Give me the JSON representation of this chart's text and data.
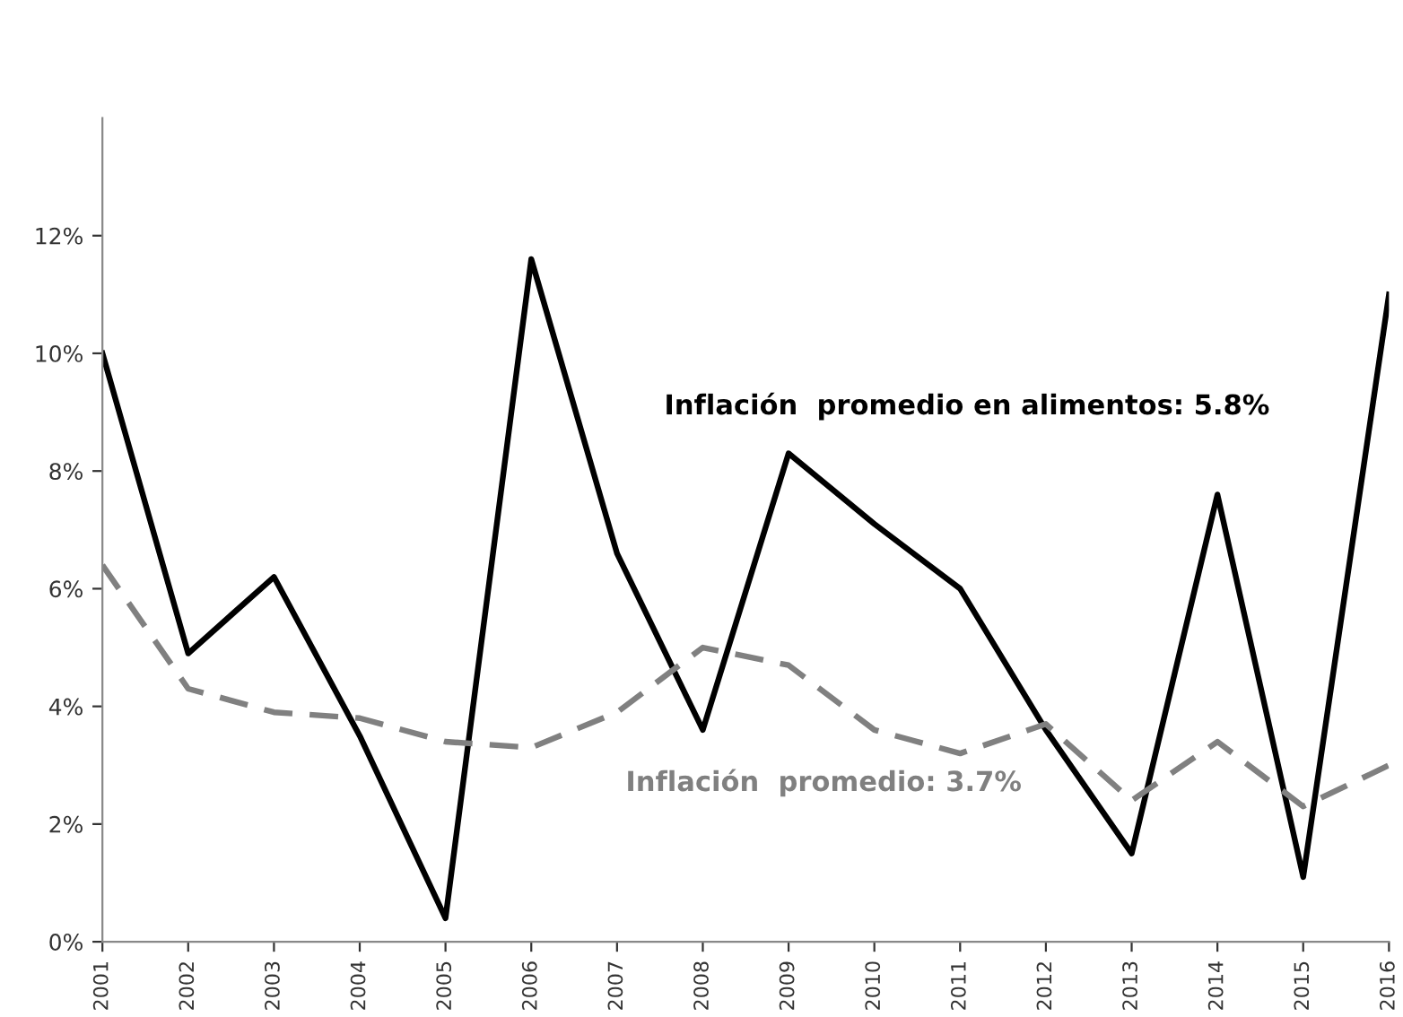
{
  "chart_data": {
    "type": "line",
    "categories": [
      "2001",
      "2002",
      "2003",
      "2004",
      "2005",
      "2006",
      "2007",
      "2008",
      "2009",
      "2010",
      "2011",
      "2012",
      "2013",
      "2014",
      "2015",
      "2016"
    ],
    "series": [
      {
        "name": "Inflación  promedio en alimentos: 5.8%",
        "color": "#000000",
        "line_style": "solid",
        "values": [
          10.0,
          4.9,
          6.2,
          3.5,
          0.4,
          11.6,
          6.6,
          3.6,
          8.3,
          7.1,
          6.0,
          3.6,
          1.5,
          7.6,
          1.1,
          11.0
        ]
      },
      {
        "name": "Inflación  promedio: 3.7%",
        "color": "#808080",
        "line_style": "dashed",
        "values": [
          6.4,
          4.3,
          3.9,
          3.8,
          3.4,
          3.3,
          3.9,
          5.0,
          4.7,
          3.6,
          3.2,
          3.7,
          2.4,
          3.4,
          2.3,
          3.0
        ]
      }
    ],
    "ylim": [
      0,
      14
    ],
    "yticks": [
      {
        "value": 0,
        "label": "0%"
      },
      {
        "value": 2,
        "label": "2%"
      },
      {
        "value": 4,
        "label": "4%"
      },
      {
        "value": 6,
        "label": "6%"
      },
      {
        "value": 8,
        "label": "8%"
      },
      {
        "value": 10,
        "label": "10%"
      },
      {
        "value": 12,
        "label": "12%"
      }
    ],
    "grid": false,
    "legend": false,
    "marker": "none"
  }
}
